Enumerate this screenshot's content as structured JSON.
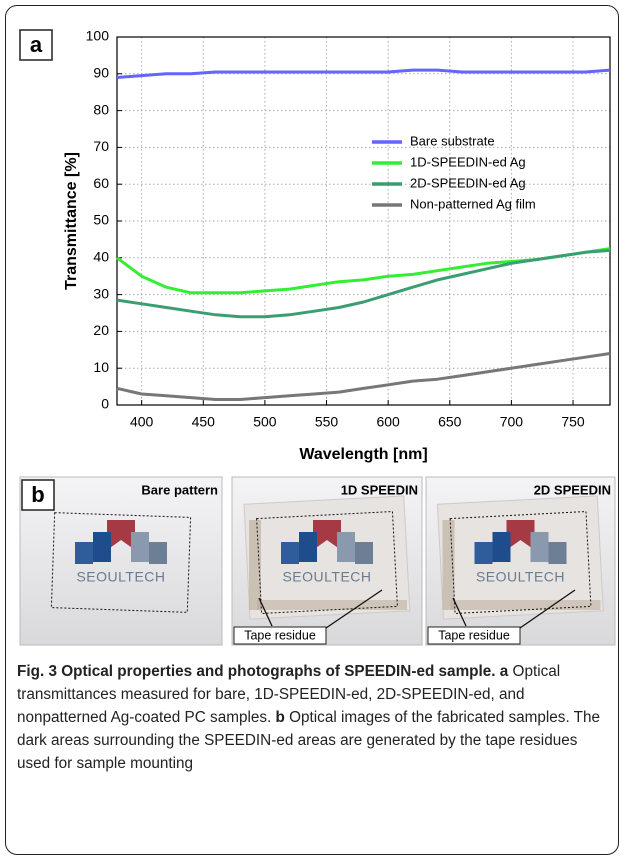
{
  "chart_data": {
    "type": "line",
    "panel_label": "a",
    "xlabel": "Wavelength [nm]",
    "ylabel": "Transmittance [%]",
    "x": [
      380,
      400,
      420,
      440,
      460,
      480,
      500,
      520,
      540,
      560,
      580,
      600,
      620,
      640,
      660,
      680,
      700,
      720,
      740,
      760,
      780
    ],
    "series": [
      {
        "name": "Bare substrate",
        "color": "#6464ff",
        "values": [
          89,
          89.5,
          90,
          90,
          90.5,
          90.5,
          90.5,
          90.5,
          90.5,
          90.5,
          90.5,
          90.5,
          91,
          91,
          90.5,
          90.5,
          90.5,
          90.5,
          90.5,
          90.5,
          91
        ]
      },
      {
        "name": "1D-SPEEDIN-ed Ag",
        "color": "#33ee33",
        "values": [
          40,
          35,
          32,
          30.5,
          30.5,
          30.5,
          31,
          31.5,
          32.5,
          33.5,
          34,
          35,
          35.5,
          36.5,
          37.5,
          38.5,
          39,
          39.5,
          40.5,
          41.5,
          42.5
        ]
      },
      {
        "name": "2D-SPEEDIN-ed Ag",
        "color": "#3a9e72",
        "values": [
          28.5,
          27.5,
          26.5,
          25.5,
          24.5,
          24,
          24,
          24.5,
          25.5,
          26.5,
          28,
          30,
          32,
          34,
          35.5,
          37,
          38.5,
          39.5,
          40.5,
          41.5,
          42
        ]
      },
      {
        "name": "Non-patterned Ag film",
        "color": "#777777",
        "values": [
          4.5,
          3,
          2.5,
          2,
          1.5,
          1.5,
          2,
          2.5,
          3,
          3.5,
          4.5,
          5.5,
          6.5,
          7,
          8,
          9,
          10,
          11,
          12,
          13,
          14
        ]
      }
    ],
    "xlim": [
      380,
      780
    ],
    "ylim": [
      0,
      100
    ],
    "xticks": [
      400,
      450,
      500,
      550,
      600,
      650,
      700,
      750
    ],
    "yticks": [
      0,
      10,
      20,
      30,
      40,
      50,
      60,
      70,
      80,
      90,
      100
    ],
    "grid": true,
    "legend": "center right"
  },
  "photos": {
    "panel_label": "b",
    "images": [
      {
        "title": "Bare pattern",
        "logo": "SEOULTECH"
      },
      {
        "title": "1D SPEEDIN",
        "logo": "SEOULTECH",
        "annotation": "Tape residue"
      },
      {
        "title": "2D SPEEDIN",
        "logo": "SEOULTECH",
        "annotation": "Tape residue"
      }
    ]
  },
  "caption": {
    "title": "Fig. 3 Optical properties and photographs of SPEEDIN-ed sample.",
    "parts": [
      {
        "label": "a",
        "text": "Optical transmittances measured for bare, 1D-SPEEDIN-ed, 2D-SPEEDIN-ed, and nonpatterned Ag-coated PC samples."
      },
      {
        "label": "b",
        "text": "Optical images of the fabricated samples. The dark areas surrounding the SPEEDIN-ed areas are generated by the tape residues used for sample mounting"
      }
    ]
  }
}
